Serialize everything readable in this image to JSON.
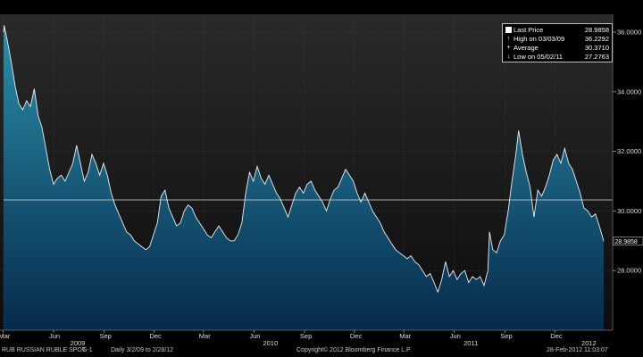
{
  "chart_data": {
    "type": "area",
    "title": "RUB RUSSIAN RUBLE SPOT",
    "y_ticks": [
      "28.0000",
      "30.0000",
      "32.0000",
      "34.0000",
      "36.0000"
    ],
    "ylim": [
      26.0,
      36.6
    ],
    "x_range": [
      "2009-03-02",
      "2012-02-28"
    ],
    "month_ticks": [
      {
        "label": "Mar",
        "date": "2009-03-01"
      },
      {
        "label": "Jun",
        "date": "2009-06-01"
      },
      {
        "label": "Sep",
        "date": "2009-09-01"
      },
      {
        "label": "Dec",
        "date": "2009-12-01"
      },
      {
        "label": "Mar",
        "date": "2010-03-01"
      },
      {
        "label": "Jun",
        "date": "2010-06-01"
      },
      {
        "label": "Sep",
        "date": "2010-09-01"
      },
      {
        "label": "Dec",
        "date": "2010-12-01"
      },
      {
        "label": "Mar",
        "date": "2011-03-01"
      },
      {
        "label": "Jun",
        "date": "2011-06-01"
      },
      {
        "label": "Sep",
        "date": "2011-09-01"
      },
      {
        "label": "Dec",
        "date": "2011-12-01"
      }
    ],
    "year_ticks": [
      {
        "label": "2009",
        "date": "2009-07-15"
      },
      {
        "label": "2010",
        "date": "2010-07-01"
      },
      {
        "label": "2011",
        "date": "2011-07-01"
      },
      {
        "label": "2012",
        "date": "2012-02-01"
      }
    ],
    "series": [
      {
        "values": [
          [
            "2009-03-02",
            36.0
          ],
          [
            "2009-03-03",
            36.23
          ],
          [
            "2009-03-09",
            35.7
          ],
          [
            "2009-03-16",
            35.0
          ],
          [
            "2009-03-23",
            34.2
          ],
          [
            "2009-03-30",
            33.6
          ],
          [
            "2009-04-06",
            33.4
          ],
          [
            "2009-04-13",
            33.7
          ],
          [
            "2009-04-20",
            33.5
          ],
          [
            "2009-04-27",
            34.1
          ],
          [
            "2009-05-04",
            33.2
          ],
          [
            "2009-05-11",
            32.8
          ],
          [
            "2009-05-18",
            32.1
          ],
          [
            "2009-05-25",
            31.4
          ],
          [
            "2009-06-01",
            30.9
          ],
          [
            "2009-06-08",
            31.1
          ],
          [
            "2009-06-15",
            31.2
          ],
          [
            "2009-06-22",
            31.0
          ],
          [
            "2009-06-29",
            31.3
          ],
          [
            "2009-07-06",
            31.6
          ],
          [
            "2009-07-13",
            32.2
          ],
          [
            "2009-07-20",
            31.6
          ],
          [
            "2009-07-27",
            31.0
          ],
          [
            "2009-08-03",
            31.3
          ],
          [
            "2009-08-10",
            31.9
          ],
          [
            "2009-08-17",
            31.6
          ],
          [
            "2009-08-24",
            31.2
          ],
          [
            "2009-08-31",
            31.6
          ],
          [
            "2009-09-07",
            31.2
          ],
          [
            "2009-09-14",
            30.6
          ],
          [
            "2009-09-21",
            30.2
          ],
          [
            "2009-09-28",
            29.9
          ],
          [
            "2009-10-05",
            29.6
          ],
          [
            "2009-10-12",
            29.3
          ],
          [
            "2009-10-19",
            29.2
          ],
          [
            "2009-10-26",
            29.0
          ],
          [
            "2009-11-02",
            28.9
          ],
          [
            "2009-11-09",
            28.8
          ],
          [
            "2009-11-16",
            28.7
          ],
          [
            "2009-11-23",
            28.8
          ],
          [
            "2009-11-30",
            29.2
          ],
          [
            "2009-12-07",
            29.6
          ],
          [
            "2009-12-14",
            30.5
          ],
          [
            "2009-12-21",
            30.7
          ],
          [
            "2009-12-28",
            30.1
          ],
          [
            "2010-01-04",
            29.8
          ],
          [
            "2010-01-11",
            29.5
          ],
          [
            "2010-01-18",
            29.6
          ],
          [
            "2010-01-25",
            30.0
          ],
          [
            "2010-02-01",
            30.2
          ],
          [
            "2010-02-08",
            30.1
          ],
          [
            "2010-02-15",
            29.8
          ],
          [
            "2010-02-22",
            29.6
          ],
          [
            "2010-03-01",
            29.4
          ],
          [
            "2010-03-08",
            29.2
          ],
          [
            "2010-03-15",
            29.1
          ],
          [
            "2010-03-22",
            29.3
          ],
          [
            "2010-03-29",
            29.5
          ],
          [
            "2010-04-05",
            29.3
          ],
          [
            "2010-04-12",
            29.1
          ],
          [
            "2010-04-19",
            29.0
          ],
          [
            "2010-04-26",
            29.0
          ],
          [
            "2010-05-03",
            29.2
          ],
          [
            "2010-05-10",
            29.6
          ],
          [
            "2010-05-17",
            30.6
          ],
          [
            "2010-05-24",
            31.3
          ],
          [
            "2010-05-31",
            31.0
          ],
          [
            "2010-06-07",
            31.5
          ],
          [
            "2010-06-14",
            31.1
          ],
          [
            "2010-06-21",
            30.9
          ],
          [
            "2010-06-28",
            31.2
          ],
          [
            "2010-07-05",
            30.9
          ],
          [
            "2010-07-12",
            30.6
          ],
          [
            "2010-07-19",
            30.4
          ],
          [
            "2010-07-26",
            30.1
          ],
          [
            "2010-08-02",
            29.8
          ],
          [
            "2010-08-09",
            30.2
          ],
          [
            "2010-08-16",
            30.6
          ],
          [
            "2010-08-23",
            30.8
          ],
          [
            "2010-08-30",
            30.6
          ],
          [
            "2010-09-06",
            30.9
          ],
          [
            "2010-09-13",
            31.0
          ],
          [
            "2010-09-20",
            30.7
          ],
          [
            "2010-09-27",
            30.5
          ],
          [
            "2010-10-04",
            30.3
          ],
          [
            "2010-10-11",
            30.0
          ],
          [
            "2010-10-18",
            30.4
          ],
          [
            "2010-10-25",
            30.7
          ],
          [
            "2010-11-01",
            30.8
          ],
          [
            "2010-11-08",
            31.1
          ],
          [
            "2010-11-15",
            31.4
          ],
          [
            "2010-11-22",
            31.2
          ],
          [
            "2010-11-29",
            31.0
          ],
          [
            "2010-12-06",
            30.6
          ],
          [
            "2010-12-13",
            30.3
          ],
          [
            "2010-12-20",
            30.6
          ],
          [
            "2010-12-27",
            30.3
          ],
          [
            "2011-01-03",
            30.0
          ],
          [
            "2011-01-10",
            29.8
          ],
          [
            "2011-01-17",
            29.6
          ],
          [
            "2011-01-24",
            29.3
          ],
          [
            "2011-01-31",
            29.1
          ],
          [
            "2011-02-07",
            28.9
          ],
          [
            "2011-02-14",
            28.7
          ],
          [
            "2011-02-21",
            28.6
          ],
          [
            "2011-02-28",
            28.5
          ],
          [
            "2011-03-07",
            28.4
          ],
          [
            "2011-03-14",
            28.5
          ],
          [
            "2011-03-21",
            28.3
          ],
          [
            "2011-03-28",
            28.2
          ],
          [
            "2011-04-04",
            28.0
          ],
          [
            "2011-04-11",
            27.8
          ],
          [
            "2011-04-18",
            27.9
          ],
          [
            "2011-04-25",
            27.6
          ],
          [
            "2011-05-02",
            27.28
          ],
          [
            "2011-05-09",
            27.7
          ],
          [
            "2011-05-16",
            28.3
          ],
          [
            "2011-05-23",
            27.8
          ],
          [
            "2011-05-30",
            28.0
          ],
          [
            "2011-06-06",
            27.7
          ],
          [
            "2011-06-13",
            27.9
          ],
          [
            "2011-06-20",
            28.0
          ],
          [
            "2011-06-27",
            27.6
          ],
          [
            "2011-07-04",
            27.8
          ],
          [
            "2011-07-11",
            27.7
          ],
          [
            "2011-07-18",
            27.8
          ],
          [
            "2011-07-25",
            27.5
          ],
          [
            "2011-08-01",
            28.0
          ],
          [
            "2011-08-04",
            29.3
          ],
          [
            "2011-08-10",
            28.7
          ],
          [
            "2011-08-17",
            28.6
          ],
          [
            "2011-08-24",
            29.0
          ],
          [
            "2011-08-31",
            29.2
          ],
          [
            "2011-09-07",
            30.0
          ],
          [
            "2011-09-14",
            31.0
          ],
          [
            "2011-09-21",
            31.9
          ],
          [
            "2011-09-26",
            32.7
          ],
          [
            "2011-10-03",
            31.9
          ],
          [
            "2011-10-10",
            31.3
          ],
          [
            "2011-10-17",
            30.8
          ],
          [
            "2011-10-24",
            29.8
          ],
          [
            "2011-10-31",
            30.7
          ],
          [
            "2011-11-07",
            30.5
          ],
          [
            "2011-11-14",
            30.8
          ],
          [
            "2011-11-21",
            31.2
          ],
          [
            "2011-11-28",
            31.7
          ],
          [
            "2011-12-05",
            31.9
          ],
          [
            "2011-12-12",
            31.6
          ],
          [
            "2011-12-19",
            32.1
          ],
          [
            "2011-12-26",
            31.6
          ],
          [
            "2012-01-02",
            31.4
          ],
          [
            "2012-01-09",
            31.0
          ],
          [
            "2012-01-16",
            30.6
          ],
          [
            "2012-01-23",
            30.1
          ],
          [
            "2012-01-30",
            30.0
          ],
          [
            "2012-02-06",
            29.8
          ],
          [
            "2012-02-13",
            29.9
          ],
          [
            "2012-02-20",
            29.5
          ],
          [
            "2012-02-28",
            28.9858
          ]
        ]
      }
    ],
    "reference_line": {
      "label": "Average",
      "value": 30.371
    },
    "last_price_label": "28.9858",
    "legend": [
      {
        "icon": "square",
        "label": "Last Price",
        "value": "28.9858"
      },
      {
        "icon": "up-arrow",
        "label": "High on 03/03/09",
        "value": "36.2292"
      },
      {
        "icon": "plus",
        "label": "Average",
        "value": "30.3710"
      },
      {
        "icon": "down-arrow",
        "label": "Low on 05/02/11",
        "value": "27.2763"
      }
    ],
    "legend_position": "top-right",
    "grid": true
  },
  "footer": {
    "ticker": "RUB  RUSSIAN RUBLE SPOT",
    "page": "G-1",
    "period": "Daily  3/2/09 to 2/28/12",
    "copyright": "Copyright© 2012 Bloomberg Finance L.P.",
    "timestamp": "28-Feb-2012 11:03:07"
  },
  "colors": {
    "area_top": "#2b8fa8",
    "area_bottom": "#062a4c",
    "line": "#e8eef2",
    "background": "#000000",
    "plot_top": "#2a2a2a",
    "plot_bottom": "#0c0c0c",
    "grid": "#404448"
  }
}
